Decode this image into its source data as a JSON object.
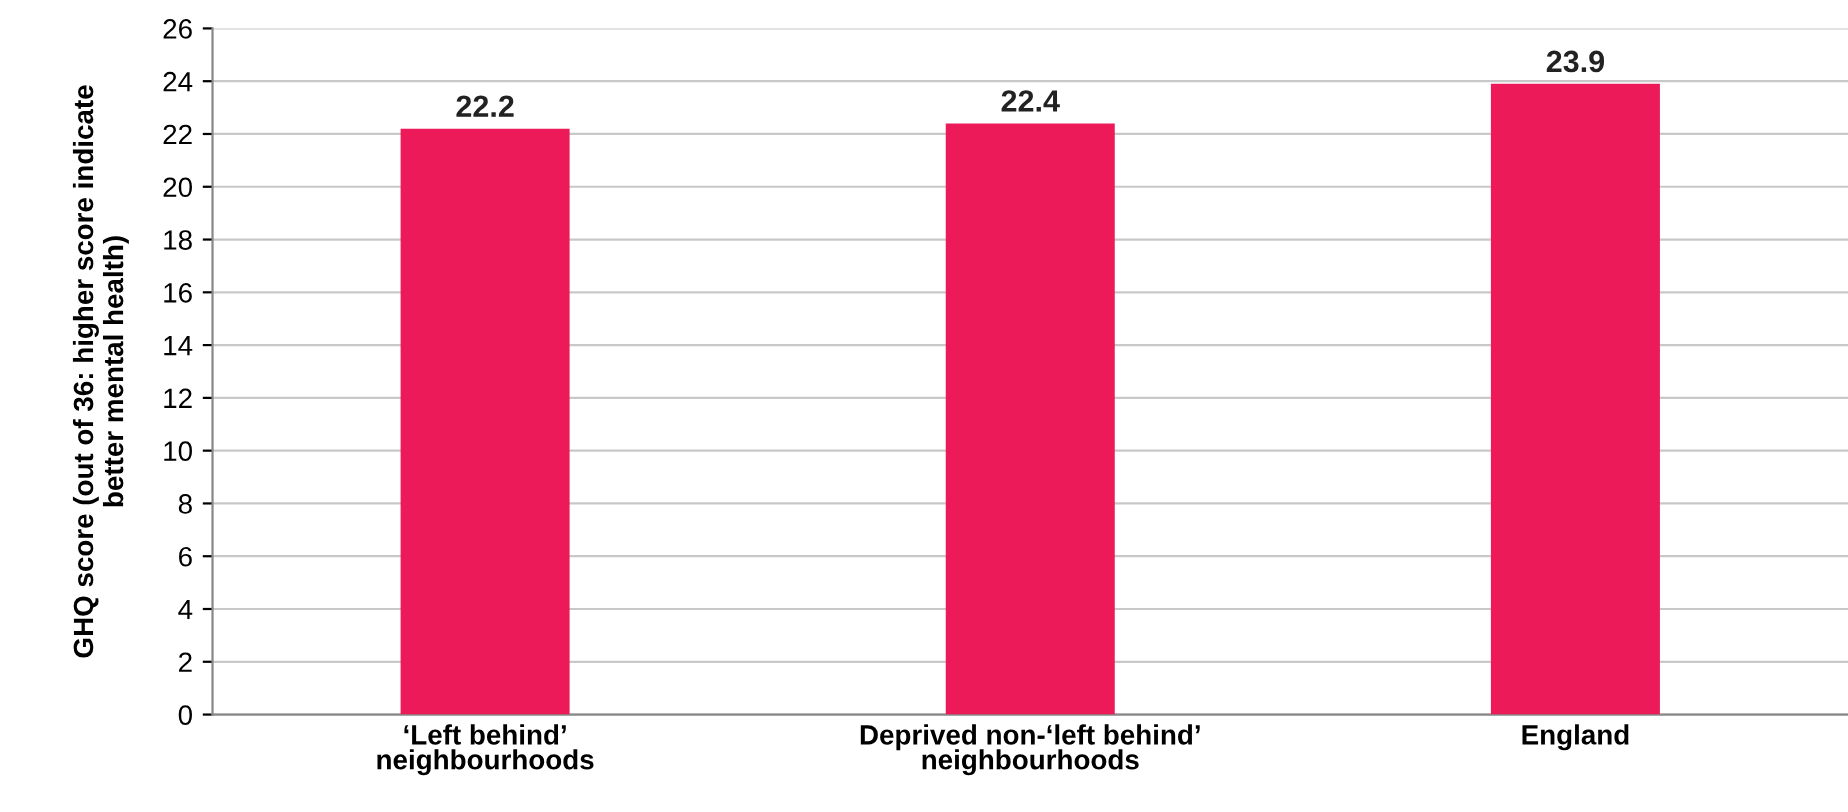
{
  "chart_data": {
    "type": "bar",
    "ylabel": "GHQ score (out of 36: higher score indicate\nbetter mental health)",
    "categories": [
      "‘Left behind’\nneighbourhoods",
      "Deprived non-‘left behind’\nneighbourhoods",
      "England"
    ],
    "values": [
      22.2,
      22.4,
      23.9
    ],
    "color": "#ec1a58",
    "ylim": [
      0,
      26
    ],
    "yticks": [
      0,
      2,
      4,
      6,
      8,
      10,
      12,
      14,
      16,
      18,
      20,
      22,
      24,
      26
    ],
    "grid": "y",
    "data_labels": true
  }
}
